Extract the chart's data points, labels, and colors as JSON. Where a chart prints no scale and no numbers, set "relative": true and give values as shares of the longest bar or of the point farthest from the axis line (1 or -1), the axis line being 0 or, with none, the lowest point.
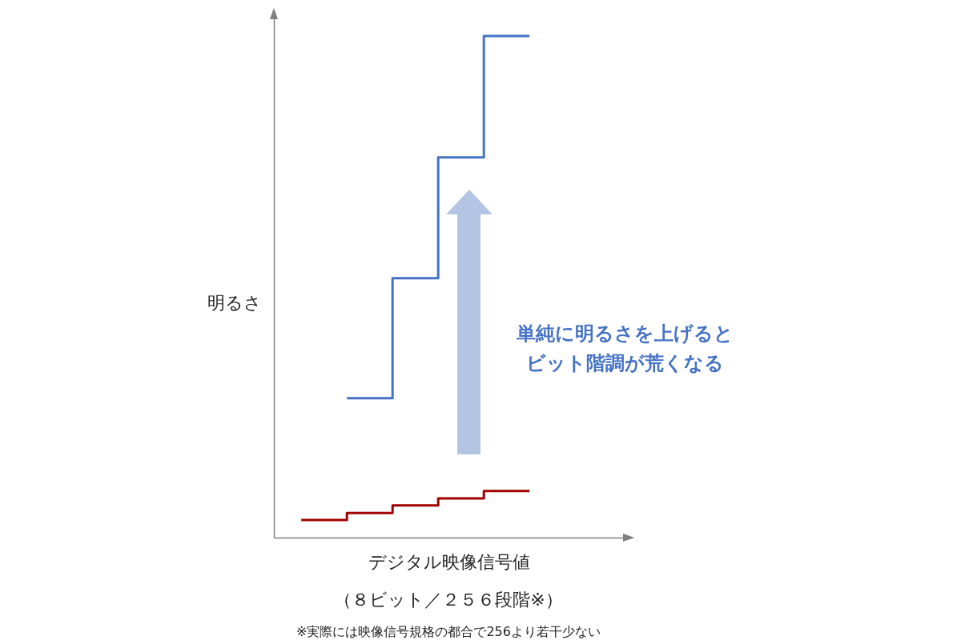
{
  "chart_data": {
    "type": "step",
    "relative": true,
    "ylabel": "明るさ",
    "xlabel": "デジタル映像信号値",
    "categories": [
      null,
      null,
      null,
      null,
      null,
      null
    ],
    "series": [
      {
        "color": "#4472c4",
        "values": [
          null,
          0.278,
          0.517,
          0.758,
          1,
          1
        ]
      },
      {
        "color": "#a00000",
        "values": [
          0.035,
          0.049,
          0.064,
          0.078,
          0.093,
          0.093
        ]
      }
    ],
    "annotations": [
      "単純に明るさを上げると",
      "ビット階調が荒くなる",
      "（８ビット／２５６段階※）",
      "※実際には映像信号規格の都合で256より若干少ない"
    ],
    "grid": false
  }
}
